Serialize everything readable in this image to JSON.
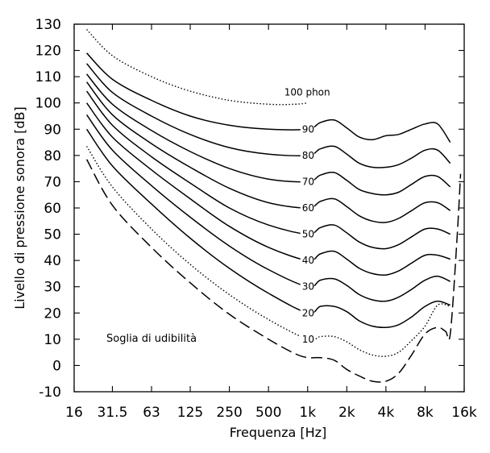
{
  "chart_data": {
    "type": "line",
    "xlabel": "Frequenza [Hz]",
    "ylabel": "Livello di pressione sonora [dB]",
    "x_scale": "log",
    "xlim": [
      16,
      16000
    ],
    "ylim": [
      -10,
      130
    ],
    "x_ticks": [
      {
        "value": 16,
        "label": "16"
      },
      {
        "value": 31.5,
        "label": "31.5"
      },
      {
        "value": 63,
        "label": "63"
      },
      {
        "value": 125,
        "label": "125"
      },
      {
        "value": 250,
        "label": "250"
      },
      {
        "value": 500,
        "label": "500"
      },
      {
        "value": 1000,
        "label": "1k"
      },
      {
        "value": 2000,
        "label": "2k"
      },
      {
        "value": 4000,
        "label": "4k"
      },
      {
        "value": 8000,
        "label": "8k"
      },
      {
        "value": 16000,
        "label": "16k"
      }
    ],
    "y_ticks": [
      130,
      120,
      110,
      100,
      90,
      80,
      70,
      60,
      50,
      40,
      30,
      20,
      10,
      0,
      -10
    ],
    "grid": false,
    "series": [
      {
        "label": "100 phon",
        "style": "dotted",
        "x": [
          20,
          31.5,
          63,
          125,
          250,
          500,
          800,
          1000
        ],
        "y": [
          128,
          118,
          110,
          104.5,
          101,
          99.5,
          99.5,
          100
        ]
      },
      {
        "label": "90",
        "style": "solid",
        "x": [
          20,
          31.5,
          63,
          125,
          250,
          500,
          1000,
          1250,
          1600,
          2000,
          2500,
          3150,
          4000,
          5000,
          6300,
          8000,
          10000,
          12500
        ],
        "y": [
          119,
          109,
          101,
          95,
          91.5,
          90,
          90,
          92.5,
          93.5,
          90.5,
          87,
          86,
          87.5,
          88,
          90,
          92,
          92,
          85
        ]
      },
      {
        "label": "80",
        "style": "solid",
        "x": [
          20,
          31.5,
          63,
          125,
          250,
          500,
          1000,
          1250,
          1600,
          2000,
          2500,
          3150,
          4000,
          5000,
          6300,
          8000,
          10000,
          12500
        ],
        "y": [
          115,
          104,
          95,
          88,
          83,
          80.5,
          80,
          82.5,
          83.5,
          80.5,
          77,
          75.5,
          75.5,
          76.5,
          79,
          82,
          82,
          77
        ]
      },
      {
        "label": "70",
        "style": "solid",
        "x": [
          20,
          31.5,
          63,
          125,
          250,
          500,
          1000,
          1250,
          1600,
          2000,
          2500,
          3150,
          4000,
          5000,
          6300,
          8000,
          10000,
          12500
        ],
        "y": [
          111,
          99.5,
          89.5,
          81.5,
          75,
          71,
          70,
          72.5,
          73.5,
          70.5,
          67,
          65.5,
          65,
          66,
          69,
          72,
          72,
          68
        ]
      },
      {
        "label": "60",
        "style": "solid",
        "x": [
          20,
          31.5,
          63,
          125,
          250,
          500,
          1000,
          1250,
          1600,
          2000,
          2500,
          3150,
          4000,
          5000,
          6300,
          8000,
          10000,
          12500
        ],
        "y": [
          108,
          95.5,
          84.5,
          75.5,
          67.5,
          62,
          60,
          62.5,
          63.5,
          60.5,
          57,
          55,
          54.5,
          56,
          59,
          62,
          62,
          59
        ]
      },
      {
        "label": "50",
        "style": "solid",
        "x": [
          20,
          31.5,
          63,
          125,
          250,
          500,
          1000,
          1250,
          1600,
          2000,
          2500,
          3150,
          4000,
          5000,
          6300,
          8000,
          10000,
          12500
        ],
        "y": [
          104.5,
          91.5,
          79.5,
          69.5,
          60,
          53.5,
          50,
          52.5,
          53.5,
          50.5,
          47,
          45,
          44.5,
          46,
          49,
          52,
          52,
          50
        ]
      },
      {
        "label": "40",
        "style": "solid",
        "x": [
          20,
          31.5,
          63,
          125,
          250,
          500,
          1000,
          1250,
          1600,
          2000,
          2500,
          3150,
          4000,
          5000,
          6300,
          8000,
          10000,
          12500
        ],
        "y": [
          100,
          87,
          74.5,
          63.5,
          53,
          45,
          40,
          42.5,
          43.5,
          40.5,
          37,
          35,
          34.5,
          36,
          39,
          42,
          42,
          40.5
        ]
      },
      {
        "label": "30",
        "style": "solid",
        "x": [
          20,
          31.5,
          63,
          125,
          250,
          500,
          1000,
          1250,
          1600,
          2000,
          2500,
          3150,
          4000,
          5000,
          6300,
          8000,
          10000,
          12500
        ],
        "y": [
          95.5,
          82,
          68.5,
          56.5,
          45.5,
          36.5,
          30,
          32.5,
          33,
          30.5,
          27,
          25,
          24.5,
          26,
          29,
          32.5,
          34,
          32
        ]
      },
      {
        "label": "20",
        "style": "solid",
        "x": [
          20,
          31.5,
          63,
          125,
          250,
          500,
          1000,
          1250,
          1600,
          2000,
          2500,
          3150,
          4000,
          5000,
          6300,
          8000,
          10000,
          12500
        ],
        "y": [
          90,
          76,
          61.5,
          48.5,
          37,
          27.5,
          20,
          22.5,
          22.5,
          20.5,
          17,
          15,
          14.5,
          15.5,
          18.5,
          22.5,
          24.5,
          23
        ]
      },
      {
        "label": "10",
        "style": "dotted",
        "x": [
          20,
          31.5,
          63,
          125,
          250,
          500,
          1000,
          1250,
          1600,
          2000,
          2500,
          3150,
          4000,
          5000,
          6300,
          8000,
          10000,
          12500
        ],
        "y": [
          83.5,
          68,
          52,
          38.5,
          27,
          17.5,
          10,
          11,
          11,
          9,
          6,
          4,
          3.5,
          5,
          9.5,
          15,
          23,
          22.5
        ]
      },
      {
        "label": "Soglia di udibilità",
        "style": "dashed",
        "x": [
          20,
          31.5,
          63,
          125,
          250,
          500,
          800,
          1000,
          1250,
          1600,
          2000,
          2500,
          3150,
          4000,
          5000,
          6300,
          8000,
          10000,
          11500,
          12500,
          14000,
          15000
        ],
        "y": [
          78.5,
          61,
          45,
          31.5,
          19.5,
          10,
          4.5,
          3,
          3,
          2,
          -1.5,
          -4,
          -6,
          -6,
          -3,
          4,
          12,
          14.5,
          13,
          12,
          46,
          73
        ]
      }
    ],
    "annotations": [
      "Soglia di udibilità"
    ]
  }
}
